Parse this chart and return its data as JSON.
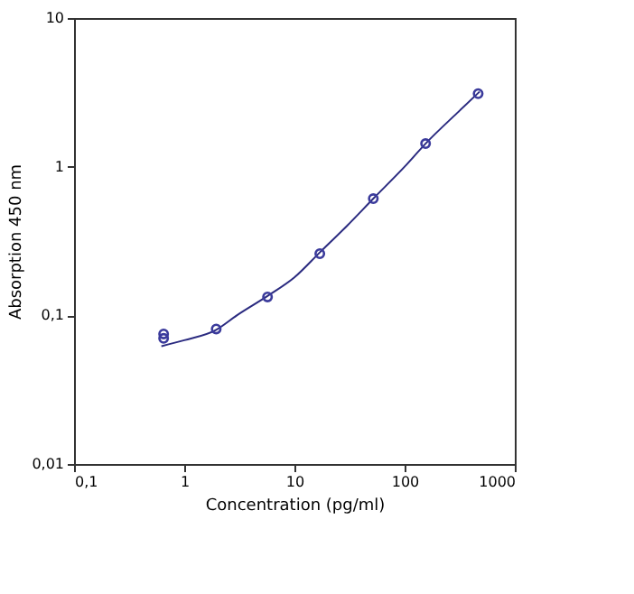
{
  "chart_data": {
    "type": "scatter",
    "xlabel": "Concentration (pg/ml)",
    "ylabel": "Absorption 450 nm",
    "log": "xy",
    "grid": false,
    "xlim": [
      0.1,
      1000
    ],
    "ylim": [
      0.01,
      10
    ],
    "xticks": [
      {
        "value": 0.1,
        "label": "0,1"
      },
      1,
      10,
      100,
      1000
    ],
    "yticks": [
      {
        "value": 0.01,
        "label": "0,01"
      },
      {
        "value": 0.1,
        "label": "0,1"
      },
      1,
      10
    ],
    "series": [
      {
        "marker": "circle",
        "color": "#3b3b9c",
        "x": [
          0.65,
          0.65,
          1.95,
          5.7,
          17,
          52,
          155,
          465
        ],
        "values": [
          0.075,
          0.07,
          0.081,
          0.133,
          0.26,
          0.61,
          1.43,
          3.1
        ]
      },
      {
        "type": "line",
        "marker": "none",
        "color": "#2b2b80",
        "x": [
          0.62,
          1,
          1.95,
          3,
          5.7,
          10,
          17,
          30,
          52,
          100,
          155,
          300,
          480
        ],
        "values": [
          0.062,
          0.068,
          0.08,
          0.1,
          0.135,
          0.18,
          0.265,
          0.4,
          0.61,
          1.0,
          1.43,
          2.3,
          3.2
        ]
      }
    ]
  }
}
